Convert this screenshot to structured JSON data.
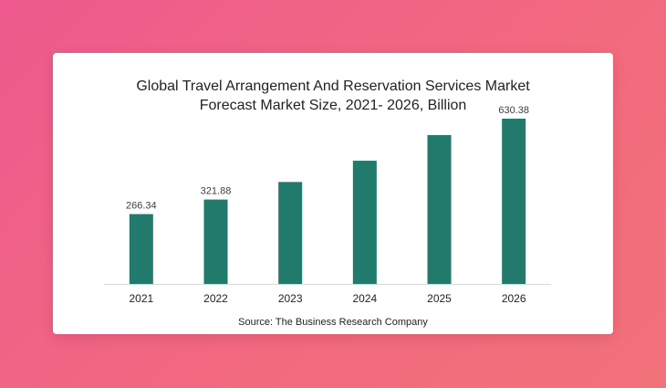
{
  "chart_data": {
    "type": "bar",
    "title_lines": [
      "Global Travel Arrangement And Reservation Services Market",
      "Forecast Market Size, 2021- 2026, Billion"
    ],
    "categories": [
      "2021",
      "2022",
      "2023",
      "2024",
      "2025",
      "2026"
    ],
    "values": [
      266.34,
      321.88,
      388.9,
      469.9,
      567.8,
      630.38
    ],
    "data_labels": [
      "266.34",
      "321.88",
      "",
      "",
      "",
      "630.38"
    ],
    "ylim": [
      0,
      700
    ],
    "grid": false,
    "bar_color": "#227a6c",
    "source": "Source: The Business Research Company"
  }
}
